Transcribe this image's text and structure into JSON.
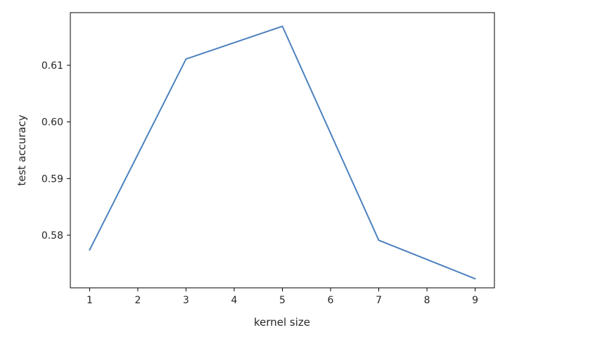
{
  "chart_data": {
    "type": "line",
    "title": "",
    "xlabel": "kernel size",
    "ylabel": "test accuracy",
    "x": [
      1,
      3,
      5,
      7,
      9
    ],
    "series": [
      {
        "values": [
          0.5774,
          0.6111,
          0.6169,
          0.5791,
          0.5723
        ],
        "color": "#4c81bd"
      }
    ],
    "xticks": [
      "1",
      "2",
      "3",
      "4",
      "5",
      "6",
      "7",
      "8",
      "9"
    ],
    "yticks": [
      "0.58",
      "0.59",
      "0.60",
      "0.61"
    ],
    "xlim": [
      0.6,
      9.4
    ],
    "ylim": [
      0.5707,
      0.6193
    ],
    "grid": false,
    "legend": "none"
  }
}
